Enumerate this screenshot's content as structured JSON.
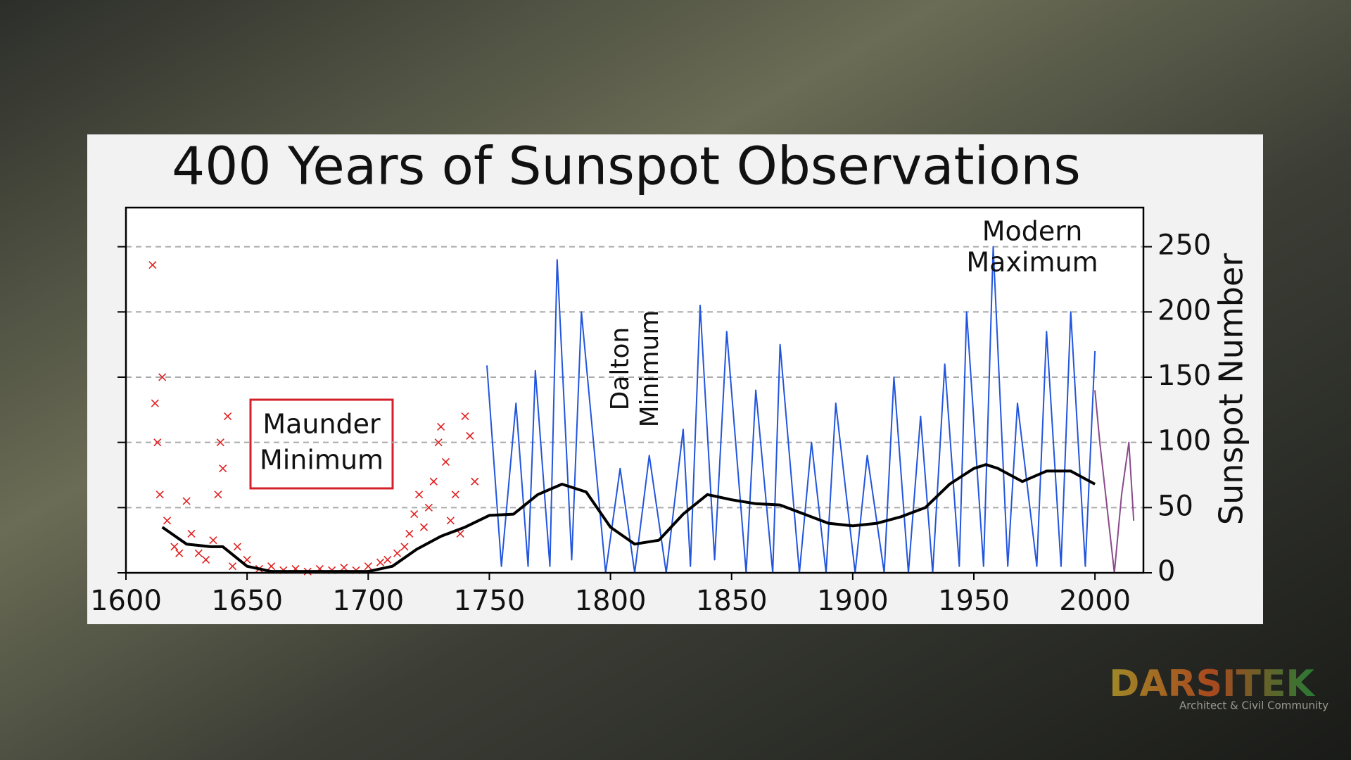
{
  "chart_data": {
    "type": "line",
    "title": "400 Years of Sunspot Observations",
    "y_label": "Sunspot Number",
    "xlim": [
      1600,
      2020
    ],
    "ylim": [
      0,
      280
    ],
    "xticks": [
      1600,
      1650,
      1700,
      1750,
      1800,
      1850,
      1900,
      1950,
      2000
    ],
    "yticks": [
      0,
      50,
      100,
      150,
      200,
      250
    ],
    "grid": true,
    "series": [
      {
        "type": "line",
        "color": "#2255dd",
        "x": [
          1749,
          1755,
          1761,
          1766,
          1769,
          1775,
          1778,
          1784,
          1788,
          1798,
          1804,
          1810,
          1816,
          1823,
          1830,
          1833,
          1837,
          1843,
          1848,
          1856,
          1860,
          1867,
          1870,
          1878,
          1883,
          1889,
          1893,
          1901,
          1906,
          1913,
          1917,
          1923,
          1928,
          1933,
          1938,
          1944,
          1947,
          1954,
          1958,
          1964,
          1968,
          1976,
          1980,
          1986,
          1990,
          1996,
          2000
        ],
        "values": [
          159,
          5,
          130,
          5,
          155,
          5,
          240,
          10,
          200,
          0,
          80,
          0,
          90,
          0,
          110,
          5,
          205,
          10,
          185,
          0,
          140,
          0,
          175,
          0,
          100,
          0,
          130,
          0,
          90,
          0,
          150,
          0,
          120,
          0,
          160,
          5,
          200,
          5,
          250,
          5,
          130,
          5,
          185,
          5,
          200,
          5,
          170
        ]
      },
      {
        "type": "line",
        "color": "#8a4a8a",
        "x": [
          2000,
          2002,
          2008,
          2011,
          2014,
          2016
        ],
        "values": [
          140,
          100,
          0,
          60,
          100,
          40
        ]
      },
      {
        "type": "scatter",
        "color": "#e02020",
        "x": [
          1611,
          1612,
          1613,
          1614,
          1615,
          1617,
          1620,
          1622,
          1625,
          1627,
          1630,
          1633,
          1636,
          1638,
          1639,
          1640,
          1642,
          1644,
          1646,
          1650,
          1655,
          1660,
          1665,
          1670,
          1675,
          1680,
          1685,
          1690,
          1695,
          1700,
          1705,
          1708,
          1712,
          1715,
          1717,
          1719,
          1721,
          1723,
          1725,
          1727,
          1729,
          1730,
          1732,
          1734,
          1736,
          1738,
          1740,
          1742,
          1744
        ],
        "values": [
          236,
          130,
          100,
          60,
          150,
          40,
          20,
          15,
          55,
          30,
          15,
          10,
          25,
          60,
          100,
          80,
          120,
          5,
          20,
          10,
          3,
          5,
          2,
          3,
          1,
          3,
          2,
          4,
          2,
          5,
          8,
          10,
          15,
          20,
          30,
          45,
          60,
          35,
          50,
          70,
          100,
          112,
          85,
          40,
          60,
          30,
          120,
          105,
          70
        ]
      },
      {
        "type": "line",
        "color": "#000000",
        "x": [
          1615,
          1625,
          1635,
          1640,
          1650,
          1660,
          1680,
          1700,
          1710,
          1720,
          1730,
          1740,
          1750,
          1760,
          1770,
          1780,
          1790,
          1800,
          1810,
          1820,
          1830,
          1840,
          1850,
          1860,
          1870,
          1880,
          1890,
          1900,
          1910,
          1920,
          1930,
          1940,
          1950,
          1955,
          1960,
          1970,
          1980,
          1990,
          2000
        ],
        "values": [
          35,
          22,
          20,
          20,
          5,
          1,
          1,
          1,
          5,
          18,
          28,
          35,
          44,
          45,
          60,
          68,
          62,
          35,
          22,
          25,
          45,
          60,
          56,
          53,
          52,
          45,
          38,
          36,
          38,
          43,
          50,
          68,
          80,
          83,
          80,
          70,
          78,
          78,
          68
        ]
      }
    ],
    "annotations": [
      [
        "Maunder",
        "Minimum"
      ],
      [
        "Dalton",
        "Minimum"
      ],
      [
        "Modern",
        "Maximum"
      ]
    ]
  },
  "watermark": {
    "brand": "DARSITEK",
    "tagline": "Architect & Civil Community"
  }
}
